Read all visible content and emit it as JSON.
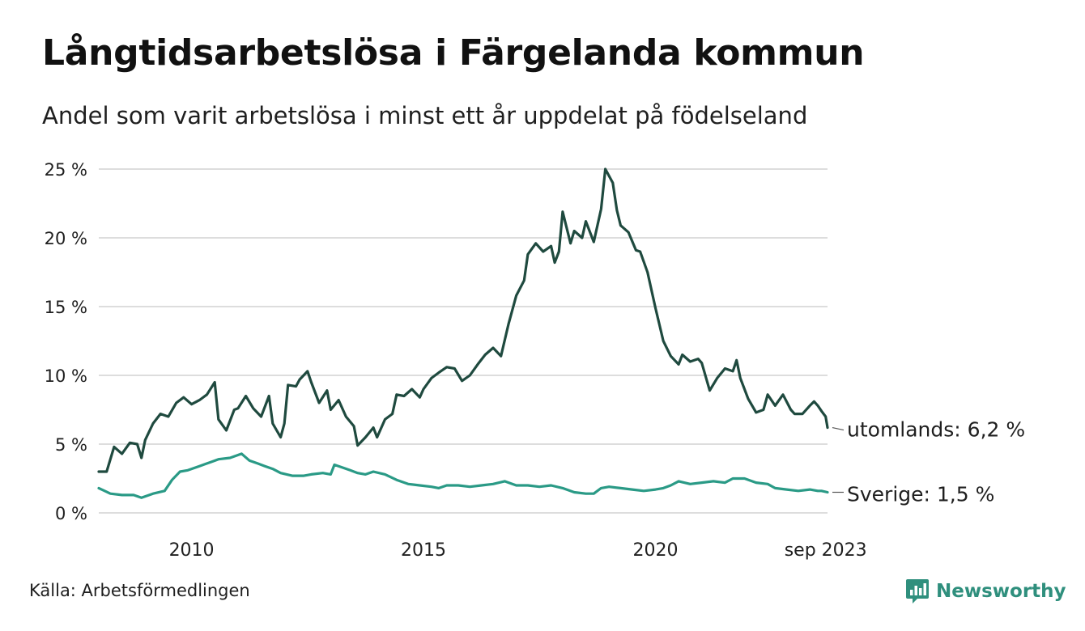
{
  "header": {
    "title": "Långtidsarbetslösa i Färgelanda kommun",
    "subtitle": "Andel som varit arbetslösa i minst ett år uppdelat på födelseland"
  },
  "footer": {
    "source": "Källa: Arbetsförmedlingen",
    "brand": "Newsworthy"
  },
  "colors": {
    "utomlands": "#1f4a3f",
    "sverige": "#2a9a86",
    "grid": "#dddddd",
    "brand": "#2f8f7d"
  },
  "chart_data": {
    "type": "line",
    "title": "Långtidsarbetslösa i Färgelanda kommun",
    "xlabel": "",
    "ylabel": "",
    "ylim": [
      0,
      25
    ],
    "yticks": [
      0,
      5,
      10,
      15,
      20,
      25
    ],
    "ytick_labels": [
      "0 %",
      "5 %",
      "10 %",
      "15 %",
      "20 %",
      "25 %"
    ],
    "xlim": [
      2008.0,
      2023.71
    ],
    "xticks": [
      2010,
      2015,
      2020,
      2023.67
    ],
    "xtick_labels": [
      "2010",
      "2015",
      "2020",
      "sep 2023"
    ],
    "grid": true,
    "series": [
      {
        "name": "utomlands",
        "end_label": "utomlands: 6,2 %",
        "points": [
          [
            2008.0,
            3.0
          ],
          [
            2008.17,
            3.0
          ],
          [
            2008.33,
            4.8
          ],
          [
            2008.5,
            4.3
          ],
          [
            2008.67,
            5.1
          ],
          [
            2008.83,
            5.0
          ],
          [
            2008.92,
            4.0
          ],
          [
            2009.0,
            5.3
          ],
          [
            2009.17,
            6.5
          ],
          [
            2009.33,
            7.2
          ],
          [
            2009.5,
            7.0
          ],
          [
            2009.67,
            8.0
          ],
          [
            2009.83,
            8.4
          ],
          [
            2010.0,
            7.9
          ],
          [
            2010.17,
            8.2
          ],
          [
            2010.33,
            8.6
          ],
          [
            2010.5,
            9.5
          ],
          [
            2010.58,
            6.8
          ],
          [
            2010.75,
            6.0
          ],
          [
            2010.92,
            7.5
          ],
          [
            2011.0,
            7.6
          ],
          [
            2011.17,
            8.5
          ],
          [
            2011.33,
            7.6
          ],
          [
            2011.5,
            7.0
          ],
          [
            2011.67,
            8.5
          ],
          [
            2011.75,
            6.5
          ],
          [
            2011.92,
            5.5
          ],
          [
            2012.0,
            6.5
          ],
          [
            2012.08,
            9.3
          ],
          [
            2012.25,
            9.2
          ],
          [
            2012.33,
            9.7
          ],
          [
            2012.5,
            10.3
          ],
          [
            2012.58,
            9.5
          ],
          [
            2012.75,
            8.0
          ],
          [
            2012.92,
            8.9
          ],
          [
            2013.0,
            7.5
          ],
          [
            2013.17,
            8.2
          ],
          [
            2013.33,
            7.0
          ],
          [
            2013.5,
            6.3
          ],
          [
            2013.58,
            4.9
          ],
          [
            2013.75,
            5.5
          ],
          [
            2013.92,
            6.2
          ],
          [
            2014.0,
            5.5
          ],
          [
            2014.17,
            6.8
          ],
          [
            2014.33,
            7.2
          ],
          [
            2014.42,
            8.6
          ],
          [
            2014.58,
            8.5
          ],
          [
            2014.75,
            9.0
          ],
          [
            2014.92,
            8.4
          ],
          [
            2015.0,
            9.0
          ],
          [
            2015.17,
            9.8
          ],
          [
            2015.33,
            10.2
          ],
          [
            2015.5,
            10.6
          ],
          [
            2015.67,
            10.5
          ],
          [
            2015.83,
            9.6
          ],
          [
            2016.0,
            10.0
          ],
          [
            2016.17,
            10.8
          ],
          [
            2016.33,
            11.5
          ],
          [
            2016.5,
            12.0
          ],
          [
            2016.67,
            11.4
          ],
          [
            2016.83,
            13.7
          ],
          [
            2017.0,
            15.8
          ],
          [
            2017.17,
            16.9
          ],
          [
            2017.25,
            18.8
          ],
          [
            2017.42,
            19.6
          ],
          [
            2017.58,
            19.0
          ],
          [
            2017.75,
            19.4
          ],
          [
            2017.83,
            18.2
          ],
          [
            2017.92,
            19.0
          ],
          [
            2018.0,
            21.9
          ],
          [
            2018.17,
            19.6
          ],
          [
            2018.25,
            20.5
          ],
          [
            2018.42,
            20.0
          ],
          [
            2018.5,
            21.2
          ],
          [
            2018.67,
            19.7
          ],
          [
            2018.83,
            22.1
          ],
          [
            2018.92,
            25.0
          ],
          [
            2019.08,
            24.0
          ],
          [
            2019.17,
            22.0
          ],
          [
            2019.25,
            20.9
          ],
          [
            2019.42,
            20.4
          ],
          [
            2019.58,
            19.1
          ],
          [
            2019.67,
            19.0
          ],
          [
            2019.83,
            17.5
          ],
          [
            2020.0,
            14.9
          ],
          [
            2020.17,
            12.5
          ],
          [
            2020.33,
            11.4
          ],
          [
            2020.5,
            10.8
          ],
          [
            2020.58,
            11.5
          ],
          [
            2020.75,
            11.0
          ],
          [
            2020.92,
            11.2
          ],
          [
            2021.0,
            10.9
          ],
          [
            2021.17,
            8.9
          ],
          [
            2021.33,
            9.8
          ],
          [
            2021.5,
            10.5
          ],
          [
            2021.67,
            10.3
          ],
          [
            2021.75,
            11.1
          ],
          [
            2021.83,
            9.8
          ],
          [
            2022.0,
            8.3
          ],
          [
            2022.17,
            7.3
          ],
          [
            2022.33,
            7.5
          ],
          [
            2022.42,
            8.6
          ],
          [
            2022.58,
            7.8
          ],
          [
            2022.75,
            8.6
          ],
          [
            2022.92,
            7.5
          ],
          [
            2023.0,
            7.2
          ],
          [
            2023.17,
            7.2
          ],
          [
            2023.33,
            7.8
          ],
          [
            2023.42,
            8.1
          ],
          [
            2023.5,
            7.8
          ],
          [
            2023.58,
            7.4
          ],
          [
            2023.67,
            7.0
          ],
          [
            2023.71,
            6.2
          ]
        ]
      },
      {
        "name": "Sverige",
        "end_label": "Sverige: 1,5 %",
        "points": [
          [
            2008.0,
            1.8
          ],
          [
            2008.25,
            1.4
          ],
          [
            2008.5,
            1.3
          ],
          [
            2008.75,
            1.3
          ],
          [
            2008.92,
            1.1
          ],
          [
            2009.17,
            1.4
          ],
          [
            2009.42,
            1.6
          ],
          [
            2009.58,
            2.4
          ],
          [
            2009.75,
            3.0
          ],
          [
            2009.92,
            3.1
          ],
          [
            2010.17,
            3.4
          ],
          [
            2010.42,
            3.7
          ],
          [
            2010.58,
            3.9
          ],
          [
            2010.83,
            4.0
          ],
          [
            2011.08,
            4.3
          ],
          [
            2011.25,
            3.8
          ],
          [
            2011.42,
            3.6
          ],
          [
            2011.58,
            3.4
          ],
          [
            2011.75,
            3.2
          ],
          [
            2011.92,
            2.9
          ],
          [
            2012.17,
            2.7
          ],
          [
            2012.42,
            2.7
          ],
          [
            2012.58,
            2.8
          ],
          [
            2012.83,
            2.9
          ],
          [
            2013.0,
            2.8
          ],
          [
            2013.08,
            3.5
          ],
          [
            2013.25,
            3.3
          ],
          [
            2013.42,
            3.1
          ],
          [
            2013.58,
            2.9
          ],
          [
            2013.75,
            2.8
          ],
          [
            2013.92,
            3.0
          ],
          [
            2014.17,
            2.8
          ],
          [
            2014.42,
            2.4
          ],
          [
            2014.67,
            2.1
          ],
          [
            2014.92,
            2.0
          ],
          [
            2015.17,
            1.9
          ],
          [
            2015.33,
            1.8
          ],
          [
            2015.5,
            2.0
          ],
          [
            2015.75,
            2.0
          ],
          [
            2016.0,
            1.9
          ],
          [
            2016.25,
            2.0
          ],
          [
            2016.5,
            2.1
          ],
          [
            2016.75,
            2.3
          ],
          [
            2017.0,
            2.0
          ],
          [
            2017.25,
            2.0
          ],
          [
            2017.5,
            1.9
          ],
          [
            2017.75,
            2.0
          ],
          [
            2018.0,
            1.8
          ],
          [
            2018.25,
            1.5
          ],
          [
            2018.5,
            1.4
          ],
          [
            2018.67,
            1.4
          ],
          [
            2018.83,
            1.8
          ],
          [
            2019.0,
            1.9
          ],
          [
            2019.25,
            1.8
          ],
          [
            2019.5,
            1.7
          ],
          [
            2019.75,
            1.6
          ],
          [
            2020.0,
            1.7
          ],
          [
            2020.17,
            1.8
          ],
          [
            2020.33,
            2.0
          ],
          [
            2020.5,
            2.3
          ],
          [
            2020.75,
            2.1
          ],
          [
            2021.0,
            2.2
          ],
          [
            2021.25,
            2.3
          ],
          [
            2021.5,
            2.2
          ],
          [
            2021.67,
            2.5
          ],
          [
            2021.92,
            2.5
          ],
          [
            2022.17,
            2.2
          ],
          [
            2022.42,
            2.1
          ],
          [
            2022.58,
            1.8
          ],
          [
            2022.83,
            1.7
          ],
          [
            2023.08,
            1.6
          ],
          [
            2023.33,
            1.7
          ],
          [
            2023.5,
            1.6
          ],
          [
            2023.58,
            1.6
          ],
          [
            2023.71,
            1.5
          ]
        ]
      }
    ]
  }
}
